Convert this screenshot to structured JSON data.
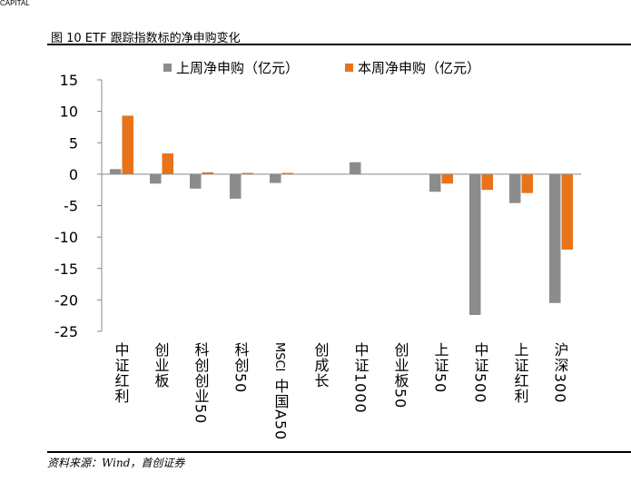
{
  "header_clip": "CAPITAL",
  "figure_title": "图 10 ETF 跟踪指数标的净申购变化",
  "source_note": "资料来源：Wind，首创证券",
  "chart_data": {
    "type": "bar",
    "categories": [
      "中证红利",
      "创业板",
      "科创创业50",
      "科创50",
      "MSCI中国A50",
      "创成长",
      "中证1000",
      "创业板50",
      "上证50",
      "中证500",
      "上证红利",
      "沪深300"
    ],
    "series": [
      {
        "name": "上周净申购（亿元）",
        "color": "#8c8c8c",
        "values": [
          0.8,
          -1.5,
          -2.3,
          -3.9,
          -1.4,
          0,
          1.9,
          0,
          -2.8,
          -22.4,
          -4.6,
          -20.5
        ]
      },
      {
        "name": "本周净申购（亿元）",
        "color": "#e8731a",
        "values": [
          9.3,
          3.3,
          0.3,
          0.2,
          0.2,
          0,
          0,
          0,
          -1.5,
          -2.5,
          -3.0,
          -12.0
        ]
      }
    ],
    "yticks": [
      "15",
      "10",
      "5",
      "0",
      "-5",
      "-10",
      "-15",
      "-20",
      "-25"
    ],
    "ylim": [
      -25,
      15
    ],
    "legend_position": "top",
    "grid": false
  }
}
